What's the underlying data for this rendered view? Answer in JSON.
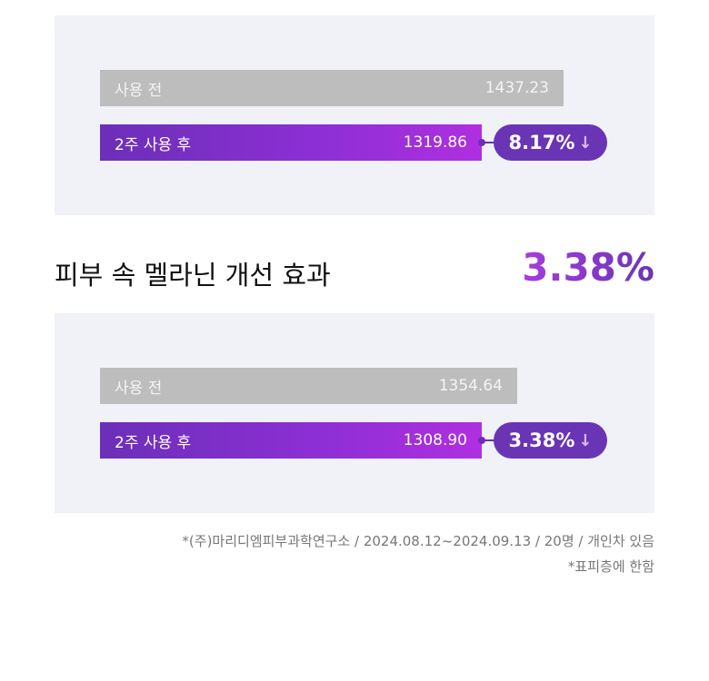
{
  "chart_data": [
    {
      "type": "bar",
      "categories": [
        "사용 전",
        "2주 사용 후"
      ],
      "values": [
        1437.23,
        1319.86
      ],
      "change": {
        "label": "8.17%",
        "direction": "down"
      }
    },
    {
      "type": "bar",
      "title": "피부 속 멜라닌 개선 효과",
      "highlight": "3.38%",
      "categories": [
        "사용 전",
        "2주 사용 후"
      ],
      "values": [
        1354.64,
        1308.9
      ],
      "change": {
        "label": "3.38%",
        "direction": "down"
      }
    }
  ],
  "charts": [
    {
      "before_label": "사용 전",
      "before_value": "1437.23",
      "after_label": "2주 사용 후",
      "after_value": "1319.86",
      "change": "8.17%"
    },
    {
      "before_label": "사용 전",
      "before_value": "1354.64",
      "after_label": "2주 사용 후",
      "after_value": "1308.90",
      "change": "3.38%"
    }
  ],
  "heading": "피부 속 멜라닌 개선 효과",
  "heading_pct": "3.38%",
  "arrow": "↓",
  "notes": [
    "*(주)마리디엠피부과학연구소 / 2024.08.12~2024.09.13 / 20명 / 개인차 있음",
    "*표피층에 한함"
  ],
  "colors": {
    "before": "#bdbdbd",
    "after_start": "#6b2fb8",
    "after_end": "#b02fe0",
    "pill": "#6a35b4",
    "panel": "#f0f2f7"
  }
}
